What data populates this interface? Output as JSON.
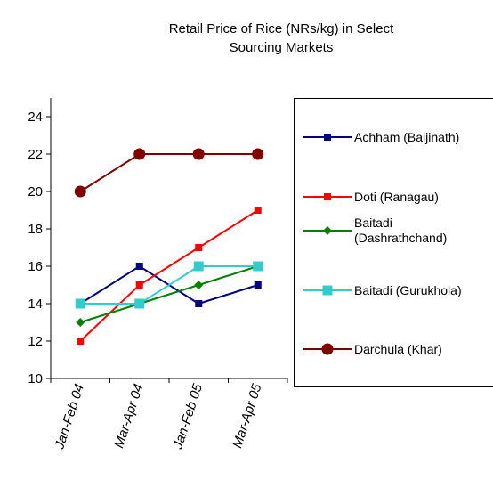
{
  "chart_data": {
    "type": "line",
    "title": "Retail Price of Rice (NRs/kg) in Select Sourcing Markets",
    "categories": [
      "Jan-Feb 04",
      "Mar-Apr 04",
      "Jan-Feb 05",
      "Mar-Apr 05"
    ],
    "series": [
      {
        "name": "Achham (Baijinath)",
        "color": "#000080",
        "marker": "square",
        "values": [
          14,
          16,
          14,
          15
        ]
      },
      {
        "name": "Doti (Ranagau)",
        "color": "#ff0000",
        "marker": "square",
        "values": [
          12,
          15,
          17,
          19
        ]
      },
      {
        "name": "Baitadi (Dashrathchand)",
        "color": "#008000",
        "marker": "diamond",
        "values": [
          13,
          14,
          15,
          16
        ]
      },
      {
        "name": "Baitadi (Gurukhola)",
        "color": "#33cccc",
        "marker": "bigsquare",
        "values": [
          14,
          14,
          16,
          16
        ]
      },
      {
        "name": "Darchula (Khar)",
        "color": "#800000",
        "marker": "circle",
        "values": [
          20,
          22,
          22,
          22
        ]
      }
    ],
    "ylim": [
      10,
      25
    ],
    "yticks": [
      10,
      12,
      14,
      16,
      18,
      20,
      22,
      24
    ],
    "grid": false
  }
}
